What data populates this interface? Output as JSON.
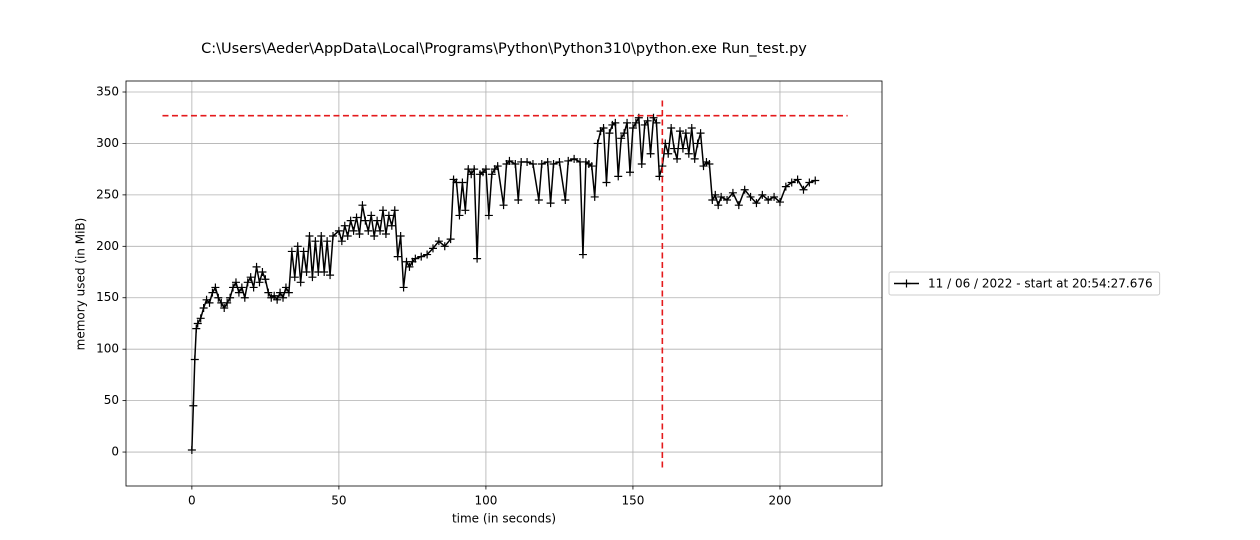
{
  "chart_data": {
    "type": "line",
    "title": "C:\\Users\\Aeder\\AppData\\Local\\Programs\\Python\\Python310\\python.exe Run_test.py",
    "x_label": "time (in seconds)",
    "y_label": "memory used (in MiB)",
    "xlim": [
      -22.4,
      234.7
    ],
    "ylim": [
      -33,
      360.7
    ],
    "xticks": [
      0,
      50,
      100,
      150,
      200
    ],
    "yticks": [
      0,
      50,
      100,
      150,
      200,
      250,
      300,
      350
    ],
    "grid": true,
    "legend": "center right outside",
    "x": [
      0,
      0.5,
      1,
      1.5,
      2,
      3,
      4,
      5,
      6,
      7,
      8,
      9,
      10,
      11,
      12,
      13,
      14,
      15,
      16,
      17,
      18,
      19,
      20,
      21,
      22,
      23,
      24,
      25,
      26,
      27,
      28,
      29,
      30,
      31,
      32,
      33,
      34,
      35,
      36,
      37,
      38,
      39,
      40,
      41,
      42,
      43,
      44,
      45,
      46,
      47,
      48,
      50,
      51,
      52,
      53,
      54,
      55,
      56,
      57,
      58,
      59,
      60,
      61,
      62,
      63,
      64,
      65,
      66,
      67,
      68,
      69,
      70,
      71,
      72,
      73,
      74,
      75,
      76,
      78,
      80,
      82,
      84,
      86,
      88,
      89,
      90,
      91,
      92,
      93,
      94,
      95,
      96,
      97,
      98,
      99,
      100,
      101,
      102,
      103,
      104,
      106,
      107,
      108,
      110,
      111,
      112,
      114,
      116,
      118,
      119,
      121,
      122,
      123,
      125,
      127,
      128,
      130,
      132,
      133,
      134,
      135,
      136,
      137,
      138,
      139,
      140,
      141,
      142,
      143,
      144,
      145,
      146,
      147,
      148,
      149,
      150,
      151,
      152,
      153,
      154,
      155,
      156,
      157,
      158,
      159,
      160,
      161,
      162,
      163,
      164,
      165,
      166,
      167,
      168,
      169,
      170,
      171,
      172,
      173,
      174,
      175,
      176,
      177,
      178,
      179,
      180,
      182,
      184,
      186,
      188,
      190,
      192,
      194,
      196,
      198,
      200,
      202,
      204,
      206,
      208,
      210,
      212
    ],
    "series": [
      {
        "name": "11 / 06 / 2022 - start at 20:54:27.676",
        "color": "#000000",
        "values": [
          2,
          45,
          90,
          120,
          125,
          130,
          140,
          148,
          145,
          155,
          160,
          150,
          145,
          140,
          145,
          150,
          160,
          165,
          155,
          160,
          150,
          165,
          170,
          160,
          180,
          165,
          175,
          168,
          155,
          150,
          152,
          148,
          155,
          150,
          160,
          155,
          195,
          170,
          200,
          165,
          195,
          175,
          210,
          170,
          205,
          175,
          210,
          175,
          205,
          172,
          210,
          215,
          205,
          220,
          210,
          225,
          215,
          228,
          212,
          240,
          225,
          215,
          230,
          210,
          225,
          215,
          235,
          212,
          230,
          220,
          235,
          190,
          210,
          160,
          185,
          180,
          185,
          188,
          190,
          192,
          198,
          205,
          200,
          207,
          265,
          262,
          230,
          262,
          235,
          275,
          270,
          275,
          188,
          270,
          272,
          275,
          230,
          270,
          275,
          278,
          240,
          280,
          283,
          280,
          245,
          282,
          282,
          280,
          245,
          280,
          282,
          242,
          280,
          282,
          245,
          283,
          285,
          282,
          192,
          282,
          280,
          278,
          248,
          300,
          312,
          315,
          262,
          310,
          318,
          320,
          268,
          305,
          310,
          320,
          272,
          315,
          320,
          325,
          280,
          318,
          322,
          290,
          325,
          320,
          268,
          278,
          300,
          290,
          315,
          295,
          285,
          312,
          295,
          310,
          290,
          315,
          285,
          300,
          310,
          278,
          282,
          280,
          245,
          250,
          240,
          248,
          245,
          252,
          240,
          255,
          248,
          242,
          250,
          245,
          248,
          243,
          258,
          262,
          265,
          255,
          262,
          264
        ]
      }
    ],
    "max_lines": {
      "color": "#e41a1c",
      "horizontal": {
        "y": 327,
        "x": [
          -10,
          223
        ]
      },
      "vertical": {
        "x": 160,
        "y": [
          -15,
          342
        ]
      }
    }
  }
}
